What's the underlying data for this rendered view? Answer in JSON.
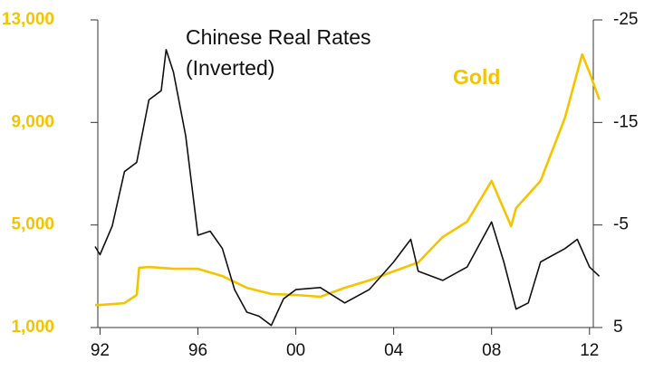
{
  "chart_data": {
    "type": "line",
    "xlim": [
      1991.8,
      2012.6
    ],
    "xticks": [
      {
        "value": 1992,
        "label": "92"
      },
      {
        "value": 1996,
        "label": "96"
      },
      {
        "value": 2000,
        "label": "00"
      },
      {
        "value": 2004,
        "label": "04"
      },
      {
        "value": 2008,
        "label": "08"
      },
      {
        "value": 2012,
        "label": "12"
      }
    ],
    "ylim": [
      1000,
      13000
    ],
    "yticks": [
      {
        "value": 1000,
        "label": "1,000"
      },
      {
        "value": 5000,
        "label": "5,000"
      },
      {
        "value": 9000,
        "label": "9,000"
      },
      {
        "value": 13000,
        "label": "13,000"
      }
    ],
    "y2lim": [
      5,
      -25
    ],
    "y2ticks": [
      -25,
      -15,
      -5,
      5
    ],
    "series": [
      {
        "name": "Chinese Real Rates (Inverted)",
        "color": "#111111",
        "axis": "y2",
        "x": [
          1991.8,
          1992,
          1992.5,
          1993,
          1993.5,
          1994,
          1994.5,
          1994.7,
          1995,
          1995.5,
          1996,
          1996.5,
          1997,
          1997.5,
          1998,
          1998.5,
          1999,
          1999.5,
          2000,
          2001,
          2002,
          2003,
          2004,
          2004.7,
          2005,
          2006,
          2007,
          2008,
          2008.5,
          2009,
          2009.5,
          2010,
          2011,
          2011.5,
          2012,
          2012.4
        ],
        "values": [
          -2.9,
          -2.1,
          -4.9,
          -10.2,
          -11.1,
          -17.2,
          -18.1,
          -22.1,
          -19.9,
          -13.7,
          -4.0,
          -4.4,
          -2.7,
          1.3,
          3.5,
          3.9,
          4.8,
          2.2,
          1.3,
          1.1,
          2.6,
          1.3,
          -1.4,
          -3.6,
          -0.5,
          0.4,
          -0.9,
          -5.3,
          -1.4,
          3.2,
          2.6,
          -1.4,
          -2.7,
          -3.6,
          -0.9,
          0
        ]
      },
      {
        "name": "Gold",
        "color": "#f5c400",
        "axis": "y",
        "x": [
          1991.8,
          1992,
          1993,
          1993.5,
          1993.6,
          1994,
          1995,
          1996,
          1997,
          1998,
          1999,
          2000,
          2001,
          2002,
          2003,
          2004,
          2005,
          2006,
          2007,
          2008,
          2008.8,
          2009,
          2010,
          2011,
          2011.7,
          2012,
          2012.4
        ],
        "values": [
          1880,
          1880,
          1950,
          2270,
          3330,
          3360,
          3290,
          3290,
          3010,
          2550,
          2310,
          2270,
          2200,
          2550,
          2840,
          3190,
          3540,
          4530,
          5130,
          6720,
          4950,
          5660,
          6720,
          9190,
          11660,
          10950,
          9890
        ]
      }
    ]
  }
}
